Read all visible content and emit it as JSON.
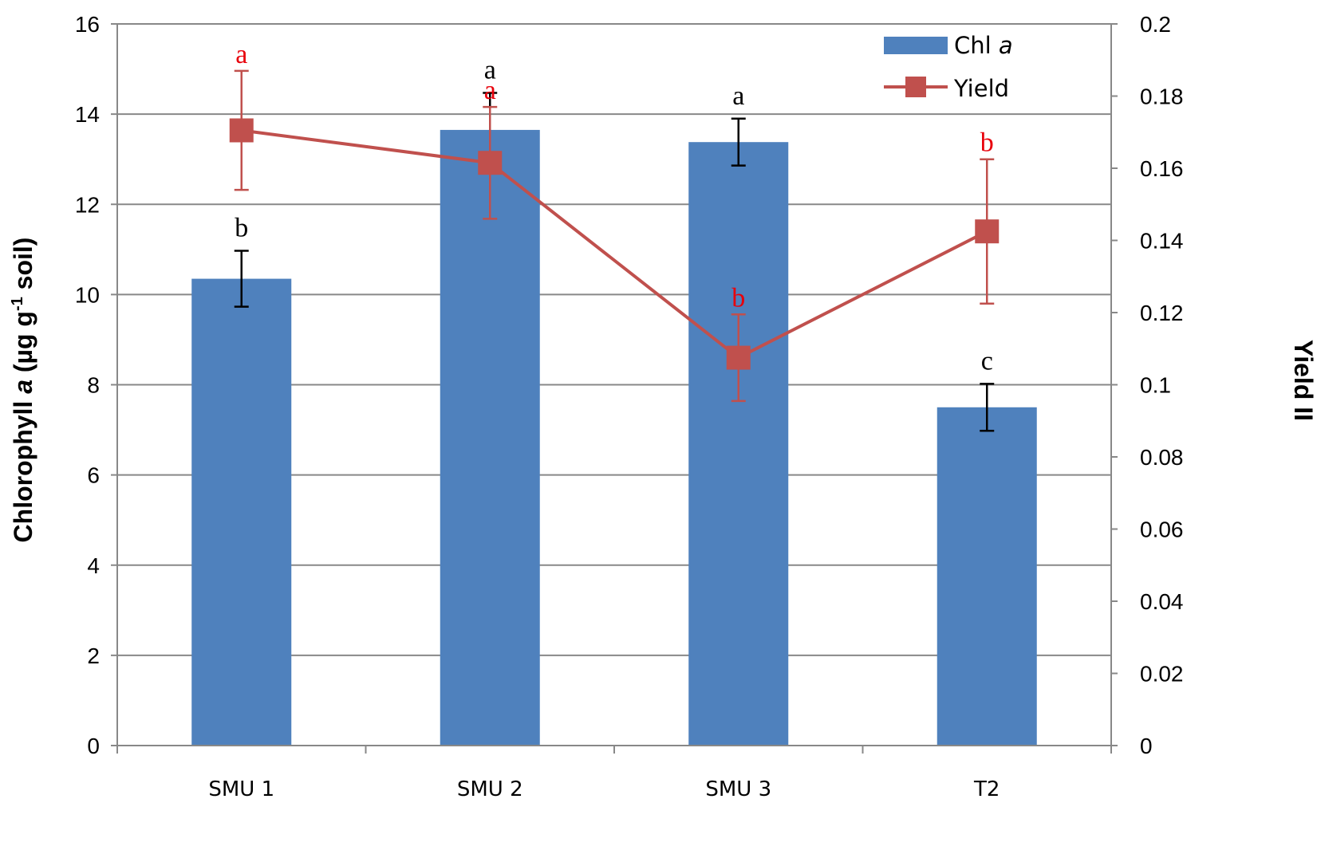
{
  "chart_data": {
    "type": "bar",
    "categories": [
      "SMU 1",
      "SMU 2",
      "SMU 3",
      "T2"
    ],
    "y_left": {
      "label_prefix": "Chlorophyll ",
      "label_italic": "a",
      "label_unit_pre": " (µg g",
      "label_sup": "-1",
      "label_unit_post": " soil)",
      "lim": [
        0,
        16
      ],
      "ticks": [
        0,
        2,
        4,
        6,
        8,
        10,
        12,
        14,
        16
      ]
    },
    "y_right": {
      "label": "Yield II",
      "lim": [
        0,
        0.2
      ],
      "ticks": [
        "0",
        "0.02",
        "0.04",
        "0.06",
        "0.08",
        "0.1",
        "0.12",
        "0.14",
        "0.16",
        "0.18",
        "0.2"
      ]
    },
    "grid": true,
    "legend_position": "top-right",
    "series": [
      {
        "name": "Chl a",
        "legend_prefix": "Chl ",
        "legend_italic": "a",
        "type": "bar",
        "axis": "left",
        "color": "#4F81BD",
        "values": [
          10.35,
          13.65,
          13.38,
          7.5
        ],
        "errors": [
          0.62,
          0.82,
          0.52,
          0.52
        ],
        "letters": [
          "b",
          "a",
          "a",
          "c"
        ],
        "letter_color": "#000000"
      },
      {
        "name": "Yield",
        "type": "line",
        "axis": "right",
        "color": "#C0504D",
        "values": [
          0.1705,
          0.1615,
          0.1075,
          0.1425
        ],
        "errors": [
          0.0165,
          0.0155,
          0.012,
          0.02
        ],
        "letters": [
          "a",
          "a",
          "b",
          "b"
        ],
        "letter_color": "#E8000B"
      }
    ]
  }
}
